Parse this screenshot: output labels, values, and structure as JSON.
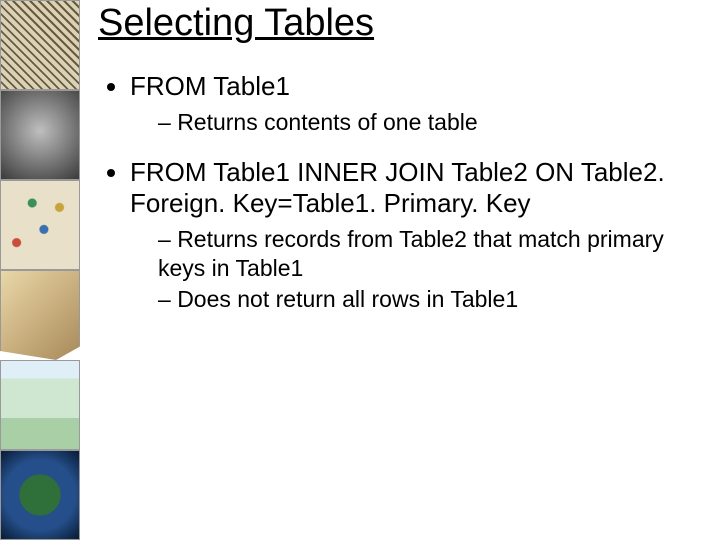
{
  "title": "Selecting Tables",
  "bullets": [
    {
      "text": "FROM Table1",
      "sub": [
        "Returns contents of one table"
      ]
    },
    {
      "text": "FROM Table1 INNER JOIN Table2 ON Table2. Foreign. Key=Table1. Primary. Key",
      "sub": [
        "Returns records from Table2 that match primary keys in Table1",
        "Does not return all rows in Table1"
      ]
    }
  ]
}
